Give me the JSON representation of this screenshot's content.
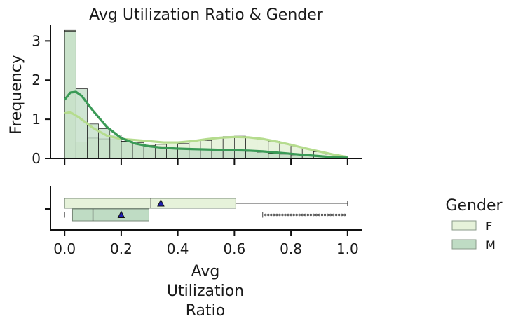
{
  "chart_data": {
    "type": "histogram+boxplot",
    "title": "Avg Utilization Ratio & Gender",
    "xlabel_lines": [
      "Avg",
      "Utilization",
      "Ratio"
    ],
    "ylabel": "Frequency",
    "xlim": [
      -0.05,
      1.05
    ],
    "ylim": [
      0,
      3.4
    ],
    "x_ticks": [
      0.0,
      0.2,
      0.4,
      0.6,
      0.8,
      1.0
    ],
    "x_tick_labels": [
      "0.0",
      "0.2",
      "0.4",
      "0.6",
      "0.8",
      "1.0"
    ],
    "y_ticks": [
      0,
      1,
      2,
      3
    ],
    "y_tick_labels": [
      "0",
      "1",
      "2",
      "3"
    ],
    "bin_edges": [
      0.0,
      0.04,
      0.08,
      0.12,
      0.16,
      0.2,
      0.24,
      0.28,
      0.32,
      0.36,
      0.4,
      0.44,
      0.48,
      0.52,
      0.56,
      0.6,
      0.64,
      0.68,
      0.72,
      0.76,
      0.8,
      0.84,
      0.88,
      0.92,
      0.96,
      1.0
    ],
    "series": [
      {
        "name": "F",
        "color": "#e6f2da",
        "kde_color": "#b5dc8e",
        "values": [
          3.27,
          0.42,
          0.52,
          0.5,
          0.48,
          0.44,
          0.4,
          0.37,
          0.36,
          0.37,
          0.38,
          0.42,
          0.46,
          0.52,
          0.56,
          0.57,
          0.53,
          0.48,
          0.44,
          0.37,
          0.3,
          0.24,
          0.17,
          0.11,
          0.06
        ],
        "kde": [
          [
            0.0,
            1.15
          ],
          [
            0.02,
            1.18
          ],
          [
            0.05,
            1.05
          ],
          [
            0.1,
            0.78
          ],
          [
            0.15,
            0.58
          ],
          [
            0.2,
            0.5
          ],
          [
            0.25,
            0.47
          ],
          [
            0.3,
            0.44
          ],
          [
            0.35,
            0.41
          ],
          [
            0.4,
            0.41
          ],
          [
            0.45,
            0.44
          ],
          [
            0.5,
            0.49
          ],
          [
            0.55,
            0.53
          ],
          [
            0.6,
            0.55
          ],
          [
            0.65,
            0.54
          ],
          [
            0.7,
            0.5
          ],
          [
            0.75,
            0.43
          ],
          [
            0.8,
            0.35
          ],
          [
            0.85,
            0.26
          ],
          [
            0.9,
            0.18
          ],
          [
            0.95,
            0.1
          ],
          [
            1.0,
            0.04
          ]
        ],
        "box": {
          "min": 0.0,
          "q1": 0.0,
          "median": 0.305,
          "q3": 0.605,
          "max": 1.0,
          "mean": 0.34,
          "outliers": []
        }
      },
      {
        "name": "M",
        "color": "#bfdcc4",
        "kde_color": "#3a9a56",
        "values": [
          3.25,
          1.78,
          0.88,
          0.76,
          0.6,
          0.43,
          0.37,
          0.33,
          0.3,
          0.27,
          0.25,
          0.24,
          0.23,
          0.22,
          0.21,
          0.2,
          0.18,
          0.16,
          0.13,
          0.11,
          0.09,
          0.07,
          0.05,
          0.04,
          0.03
        ],
        "kde": [
          [
            0.0,
            1.5
          ],
          [
            0.02,
            1.68
          ],
          [
            0.04,
            1.7
          ],
          [
            0.06,
            1.6
          ],
          [
            0.1,
            1.22
          ],
          [
            0.15,
            0.8
          ],
          [
            0.2,
            0.52
          ],
          [
            0.25,
            0.38
          ],
          [
            0.3,
            0.31
          ],
          [
            0.35,
            0.27
          ],
          [
            0.4,
            0.25
          ],
          [
            0.45,
            0.24
          ],
          [
            0.5,
            0.23
          ],
          [
            0.55,
            0.22
          ],
          [
            0.6,
            0.21
          ],
          [
            0.65,
            0.2
          ],
          [
            0.7,
            0.18
          ],
          [
            0.75,
            0.15
          ],
          [
            0.8,
            0.12
          ],
          [
            0.85,
            0.09
          ],
          [
            0.9,
            0.06
          ],
          [
            0.95,
            0.03
          ],
          [
            1.0,
            0.02
          ]
        ],
        "box": {
          "min": 0.0,
          "q1": 0.028,
          "median": 0.1,
          "q3": 0.298,
          "max": 0.7,
          "mean": 0.2,
          "outliers": [
            0.71,
            0.72,
            0.73,
            0.74,
            0.75,
            0.76,
            0.77,
            0.78,
            0.79,
            0.8,
            0.81,
            0.82,
            0.83,
            0.84,
            0.85,
            0.86,
            0.87,
            0.88,
            0.89,
            0.9,
            0.91,
            0.92,
            0.93,
            0.94,
            0.95,
            0.96,
            0.97,
            0.98,
            0.99
          ]
        }
      }
    ],
    "legend": {
      "title": "Gender",
      "placement": "right",
      "entries": [
        {
          "label": "F",
          "color": "#e6f2da"
        },
        {
          "label": "M",
          "color": "#bfdcc4"
        }
      ]
    },
    "mean_marker_color": "#1f1fb4",
    "grid": false
  }
}
